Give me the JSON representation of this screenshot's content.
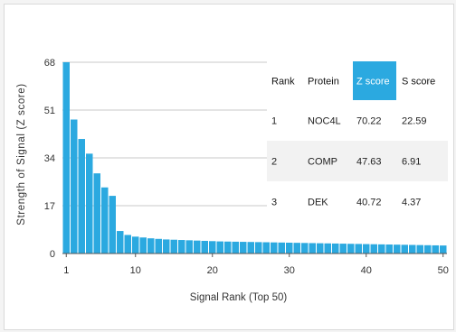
{
  "chart_data": {
    "type": "bar",
    "title": "",
    "xlabel": "Signal Rank (Top 50)",
    "ylabel": "Strength of Signal (Z score)",
    "ylim": [
      0,
      68
    ],
    "xlim": [
      0.5,
      50.5
    ],
    "yticks": [
      0,
      17,
      34,
      51,
      68
    ],
    "xticks": [
      1,
      10,
      20,
      30,
      40,
      50
    ],
    "grid": "horizontal",
    "colors": {
      "bar": "#2ba9e0",
      "highlight": "#2ba9e0",
      "row_shade": "#f2f2f2",
      "grid": "#c8c8c8"
    },
    "x": [
      1,
      2,
      3,
      4,
      5,
      6,
      7,
      8,
      9,
      10,
      11,
      12,
      13,
      14,
      15,
      16,
      17,
      18,
      19,
      20,
      21,
      22,
      23,
      24,
      25,
      26,
      27,
      28,
      29,
      30,
      31,
      32,
      33,
      34,
      35,
      36,
      37,
      38,
      39,
      40,
      41,
      42,
      43,
      44,
      45,
      46,
      47,
      48,
      49,
      50
    ],
    "values": [
      70.22,
      47.63,
      40.72,
      35.5,
      28.5,
      23.5,
      20.5,
      8.0,
      6.6,
      6.0,
      5.7,
      5.4,
      5.2,
      5.0,
      4.9,
      4.8,
      4.7,
      4.6,
      4.5,
      4.4,
      4.3,
      4.25,
      4.2,
      4.15,
      4.1,
      4.05,
      4.0,
      3.95,
      3.9,
      3.85,
      3.8,
      3.75,
      3.7,
      3.65,
      3.6,
      3.55,
      3.5,
      3.45,
      3.4,
      3.35,
      3.3,
      3.25,
      3.2,
      3.15,
      3.1,
      3.05,
      3.0,
      2.95,
      2.9,
      2.85
    ]
  },
  "table": {
    "headers": [
      "Rank",
      "Protein",
      "Z score",
      "S score"
    ],
    "highlight_header": "Z score",
    "rows": [
      [
        "1",
        "NOC4L",
        "70.22",
        "22.59"
      ],
      [
        "2",
        "COMP",
        "47.63",
        "6.91"
      ],
      [
        "3",
        "DEK",
        "40.72",
        "4.37"
      ]
    ]
  }
}
